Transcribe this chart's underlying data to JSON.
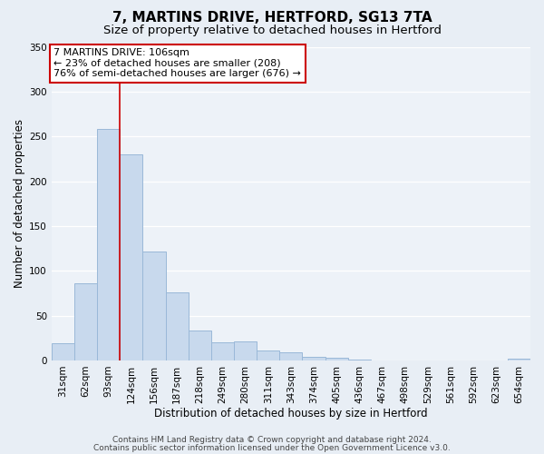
{
  "title": "7, MARTINS DRIVE, HERTFORD, SG13 7TA",
  "subtitle": "Size of property relative to detached houses in Hertford",
  "xlabel": "Distribution of detached houses by size in Hertford",
  "ylabel": "Number of detached properties",
  "bar_labels": [
    "31sqm",
    "62sqm",
    "93sqm",
    "124sqm",
    "156sqm",
    "187sqm",
    "218sqm",
    "249sqm",
    "280sqm",
    "311sqm",
    "343sqm",
    "374sqm",
    "405sqm",
    "436sqm",
    "467sqm",
    "498sqm",
    "529sqm",
    "561sqm",
    "592sqm",
    "623sqm",
    "654sqm"
  ],
  "bar_values": [
    19,
    86,
    258,
    230,
    122,
    76,
    33,
    20,
    21,
    11,
    9,
    4,
    3,
    1,
    0,
    0,
    0,
    0,
    0,
    0,
    2
  ],
  "bar_color": "#c8d9ed",
  "bar_edgecolor": "#9ab8d8",
  "vline_color": "#cc0000",
  "ylim": [
    0,
    350
  ],
  "yticks": [
    0,
    50,
    100,
    150,
    200,
    250,
    300,
    350
  ],
  "annotation_title": "7 MARTINS DRIVE: 106sqm",
  "annotation_line1": "← 23% of detached houses are smaller (208)",
  "annotation_line2": "76% of semi-detached houses are larger (676) →",
  "annotation_box_edgecolor": "#cc0000",
  "footer1": "Contains HM Land Registry data © Crown copyright and database right 2024.",
  "footer2": "Contains public sector information licensed under the Open Government Licence v3.0.",
  "bg_color": "#e8eef5",
  "plot_bg_color": "#edf2f8",
  "grid_color": "#ffffff",
  "title_fontsize": 11,
  "subtitle_fontsize": 9.5,
  "axis_label_fontsize": 8.5,
  "tick_fontsize": 7.5,
  "annotation_fontsize": 8,
  "footer_fontsize": 6.5
}
